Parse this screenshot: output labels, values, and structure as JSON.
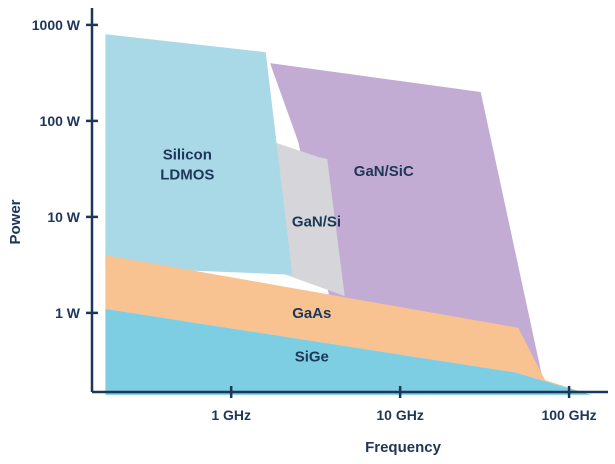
{
  "chart_data": {
    "type": "area",
    "title": "",
    "xlabel": "Frequency",
    "ylabel": "Power",
    "x_scale": "log",
    "y_scale": "log",
    "xlim_hz": [
      150000000,
      170000000000
    ],
    "ylim_w": [
      0.15,
      1500
    ],
    "x_ticks": [
      {
        "value_hz": 1000000000,
        "label": "1 GHz"
      },
      {
        "value_hz": 10000000000,
        "label": "10 GHz"
      },
      {
        "value_hz": 100000000000,
        "label": "100 GHz"
      }
    ],
    "y_ticks": [
      {
        "value_w": 1,
        "label": "1 W"
      },
      {
        "value_w": 10,
        "label": "10 W"
      },
      {
        "value_w": 100,
        "label": "100 W"
      },
      {
        "value_w": 1000,
        "label": "1000 W"
      }
    ],
    "regions": [
      {
        "name": "GaN/SiC",
        "label_lines": [
          "GaN/SiC"
        ],
        "color": "#c3acd3",
        "label_at": {
          "freq_hz": 8000000000,
          "power_w": 30
        },
        "boundary": [
          [
            1700000000,
            400
          ],
          [
            30000000000,
            200
          ],
          [
            70000000000,
            0.2
          ],
          [
            3800000000,
            1.5
          ],
          [
            2500000000,
            60
          ],
          [
            1800000000,
            300
          ]
        ]
      },
      {
        "name": "GaN/Si",
        "label_lines": [
          "GaN/Si"
        ],
        "color": "#d6d6da",
        "label_at": {
          "freq_hz": 3200000000,
          "power_w": 9
        },
        "boundary": [
          [
            1800000000,
            60
          ],
          [
            3300000000,
            42
          ],
          [
            3700000000,
            40
          ],
          [
            4700000000,
            1.5
          ],
          [
            2100000000,
            2.5
          ]
        ]
      },
      {
        "name": "Silicon LDMOS",
        "label_lines": [
          "Silicon",
          "LDMOS"
        ],
        "color": "#a9d9e7",
        "label_at": {
          "freq_hz": 550000000,
          "power_w": 35
        },
        "boundary": [
          [
            180000000,
            800
          ],
          [
            1600000000,
            520
          ],
          [
            2300000000,
            2.5
          ],
          [
            180000000,
            3
          ]
        ]
      },
      {
        "name": "GaAs",
        "label_lines": [
          "GaAs"
        ],
        "color": "#f8c291",
        "label_at": {
          "freq_hz": 3000000000,
          "power_w": 1
        },
        "boundary": [
          [
            180000000,
            4
          ],
          [
            50000000000,
            0.7
          ],
          [
            72000000000,
            0.2
          ],
          [
            135000000000,
            0.14
          ],
          [
            48000000000,
            0.24
          ],
          [
            180000000,
            1.1
          ]
        ]
      },
      {
        "name": "SiGe",
        "label_lines": [
          "SiGe"
        ],
        "color": "#7dcde3",
        "label_at": {
          "freq_hz": 3000000000,
          "power_w": 0.35
        },
        "boundary": [
          [
            180000000,
            1.1
          ],
          [
            48000000000,
            0.24
          ],
          [
            135000000000,
            0.14
          ],
          [
            180000000,
            0.14
          ]
        ]
      }
    ]
  }
}
